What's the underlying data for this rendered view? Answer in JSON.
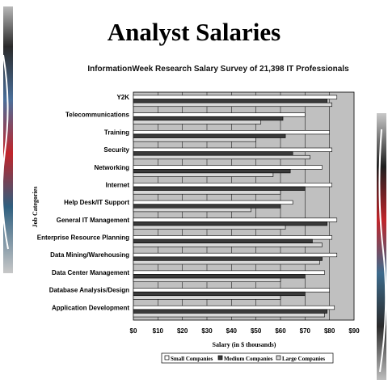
{
  "slide_title": "Analyst Salaries",
  "chart_data": {
    "type": "bar",
    "orientation": "horizontal",
    "title": "InformationWeek Research Salary Survey of 21,398 IT Professionals",
    "xlabel": "Salary (in $ thousands)",
    "ylabel": "Job Categories",
    "xlim": [
      0,
      90
    ],
    "x_ticks": [
      "$0",
      "$10",
      "$20",
      "$30",
      "$40",
      "$50",
      "$60",
      "$70",
      "$80",
      "$90"
    ],
    "grid": "vertical",
    "legend_position": "bottom",
    "categories": [
      "Y2K",
      "Telecommunications",
      "Training",
      "Security",
      "Networking",
      "Internet",
      "Help Desk/IT Support",
      "General IT Management",
      "Enterprise Resource Planning",
      "Data Mining/Warehousing",
      "Data Center Management",
      "Database Analysis/Design",
      "Application Development"
    ],
    "series": [
      {
        "name": "Small Companies",
        "color": "#ffffff",
        "values": [
          83,
          70,
          80,
          81,
          77,
          81,
          65,
          83,
          81,
          83,
          78,
          80,
          82
        ]
      },
      {
        "name": "Medium Companies",
        "color": "#3a3a3a",
        "values": [
          79,
          61,
          62,
          65,
          64,
          70,
          60,
          79,
          73,
          77,
          70,
          70,
          79
        ]
      },
      {
        "name": "Large Companies",
        "color": "#d8d8d8",
        "values": [
          81,
          52,
          50,
          72,
          57,
          60,
          48,
          62,
          77,
          76,
          60,
          60,
          78
        ]
      }
    ]
  },
  "legend": {
    "small": "Small Companies",
    "medium": "Medium Companies",
    "large": "Large Companies"
  }
}
